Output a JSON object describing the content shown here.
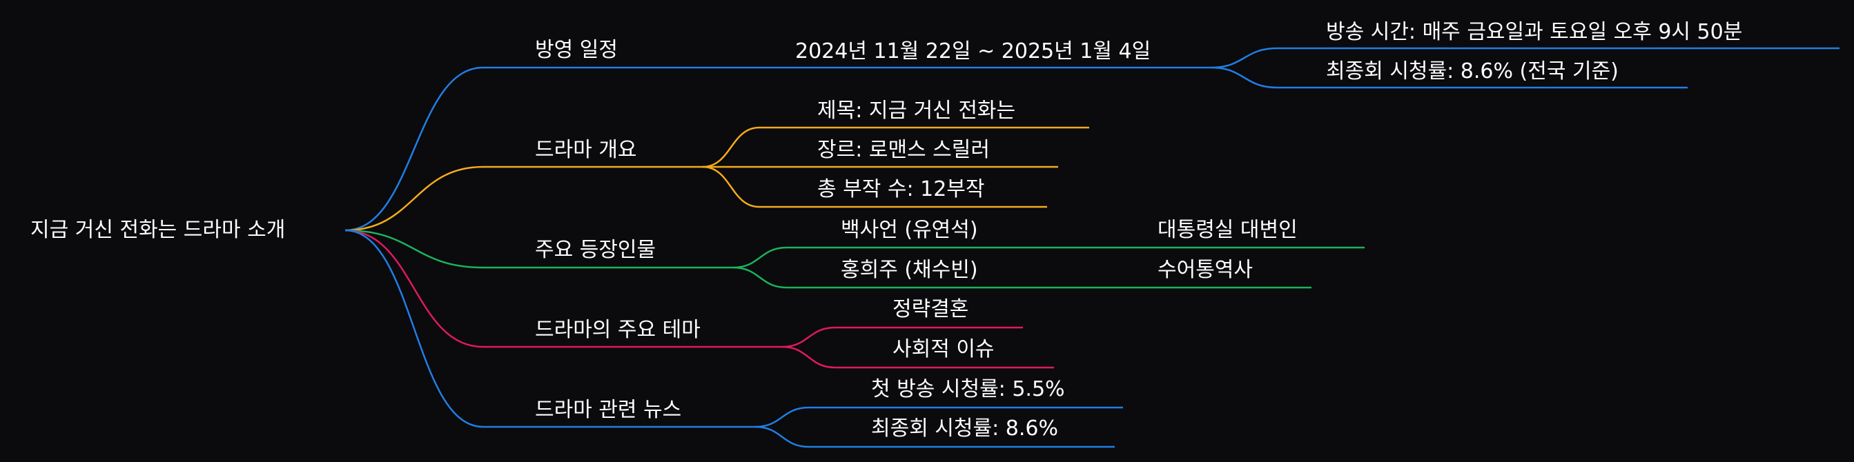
{
  "colors": {
    "background": "#0b0a0d",
    "text": "#ffffff",
    "blue": "#1f7fe5",
    "orange": "#f4ab1a",
    "green": "#1ab35c",
    "pink": "#e0195f"
  },
  "mindmap": {
    "root": "지금 거신 전화는 드라마 소개",
    "branches": [
      {
        "label": "방영 일정",
        "color": "blue",
        "children": [
          {
            "label": "2024년 11월 22일 ~ 2025년 1월 4일",
            "children": [
              {
                "label": "방송 시간: 매주 금요일과 토요일 오후 9시 50분"
              },
              {
                "label": "최종회 시청률: 8.6% (전국 기준)"
              }
            ]
          }
        ]
      },
      {
        "label": "드라마 개요",
        "color": "orange",
        "children": [
          {
            "label": "제목: 지금 거신 전화는"
          },
          {
            "label": "장르: 로맨스 스릴러"
          },
          {
            "label": "총 부작 수: 12부작"
          }
        ]
      },
      {
        "label": "주요 등장인물",
        "color": "green",
        "children": [
          {
            "label": "백사언 (유연석)",
            "children": [
              {
                "label": "대통령실 대변인"
              }
            ]
          },
          {
            "label": "홍희주 (채수빈)",
            "children": [
              {
                "label": "수어통역사"
              }
            ]
          }
        ]
      },
      {
        "label": "드라마의 주요 테마",
        "color": "pink",
        "children": [
          {
            "label": "정략결혼"
          },
          {
            "label": "사회적 이슈"
          }
        ]
      },
      {
        "label": "드라마 관련 뉴스",
        "color": "blue",
        "children": [
          {
            "label": "첫 방송 시청률: 5.5%"
          },
          {
            "label": "최종회 시청률: 8.6%"
          }
        ]
      }
    ]
  }
}
